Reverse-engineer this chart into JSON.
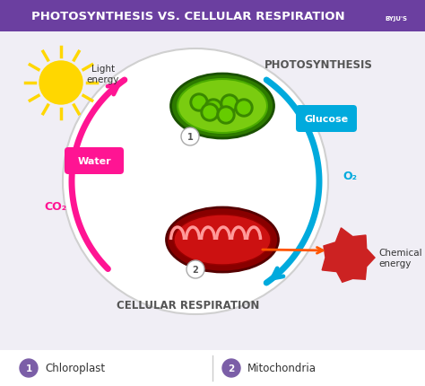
{
  "title": "PHOTOSYNTHESIS VS. CELLULAR RESPIRATION",
  "title_bg": "#6b3fa0",
  "title_color": "#ffffff",
  "bg_color": "#f0eef5",
  "circle_color": "#e8e8e8",
  "circle_edge": "#d0d0d0",
  "photosynthesis_label": "PHOTOSYNTHESIS",
  "respiration_label": "CELLULAR RESPIRATION",
  "labels": {
    "light_energy": "Light\nenergy",
    "water": "Water",
    "co2": "CO₂",
    "glucose": "Glucose",
    "o2": "O₂",
    "chemical_energy": "Chemical\nenergy"
  },
  "legend": {
    "1": "Chloroplast",
    "2": "Mitochondria"
  },
  "arrow_pink": "#ff1493",
  "arrow_blue": "#00aadd",
  "label_bg_pink": "#ff1493",
  "label_bg_blue": "#00aadd",
  "sun_color": "#ffd700",
  "sun_ray_color": "#ffd700",
  "chloroplast_color": "#5ab520",
  "mitochondria_color": "#cc1111",
  "legend_circle_color": "#7b5ea7",
  "text_dark": "#333333",
  "byju_bg": "#7b5ea7"
}
